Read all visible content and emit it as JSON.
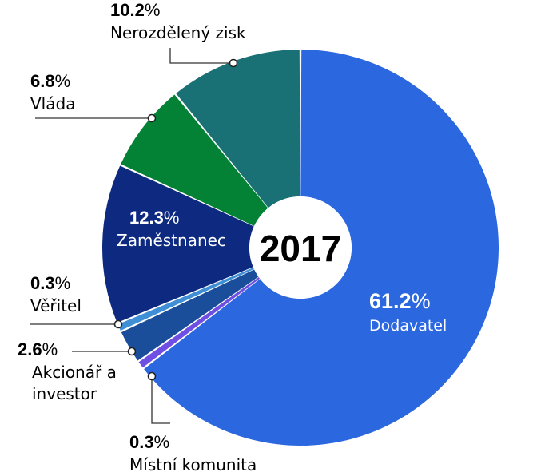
{
  "chart_data": {
    "type": "pie",
    "center_label": "2017",
    "percent_sign": "%",
    "slices": [
      {
        "label": "Dodavatel",
        "value": 61.2,
        "display": "61.2",
        "color": "#2b67df"
      },
      {
        "label": "Místní komunita",
        "value": 0.3,
        "display": "0.3",
        "color": "#6f4fe3"
      },
      {
        "label": "Akcionář a investor",
        "value": 2.6,
        "display": "2.6",
        "color": "#1b4e9a"
      },
      {
        "label": "Věřitel",
        "value": 0.3,
        "display": "0.3",
        "color": "#3f8fd6"
      },
      {
        "label": "Zaměstnanec",
        "value": 12.3,
        "display": "12.3",
        "color": "#0e2a80"
      },
      {
        "label": "Vláda",
        "value": 6.8,
        "display": "6.8",
        "color": "#038235"
      },
      {
        "label": "Nerozdělený zisk",
        "value": 10.2,
        "display": "10.2",
        "color": "#197175"
      }
    ]
  }
}
